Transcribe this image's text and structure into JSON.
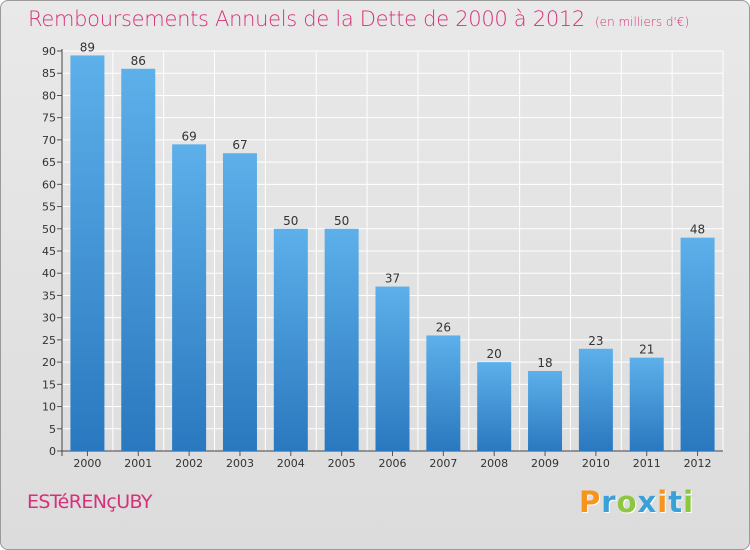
{
  "title": "Remboursements Annuels de la Dette de 2000 à 2012",
  "unit_note": "(en milliers d'€)",
  "commune": "ESTéRENçUBY",
  "logo": {
    "text": "Proxiti",
    "letter_colors": [
      "#f7941d",
      "#3aa0d8",
      "#8dc63f",
      "#3aa0d8",
      "#f7941d",
      "#3aa0d8",
      "#8dc63f"
    ]
  },
  "colors": {
    "bar_top": "#5db0ea",
    "bar_bottom": "#2a78bf",
    "title": "#d6307a",
    "grid": "#ffffff",
    "text": "#333333"
  },
  "chart_data": {
    "type": "bar",
    "title": "Remboursements Annuels de la Dette de 2000 à 2012",
    "categories": [
      "2000",
      "2001",
      "2002",
      "2003",
      "2004",
      "2005",
      "2006",
      "2007",
      "2008",
      "2009",
      "2010",
      "2011",
      "2012"
    ],
    "values": [
      89,
      86,
      69,
      67,
      50,
      50,
      37,
      26,
      20,
      18,
      23,
      21,
      48
    ],
    "ylim": [
      0,
      90
    ],
    "yticks": [
      0,
      5,
      10,
      15,
      20,
      25,
      30,
      35,
      40,
      45,
      50,
      55,
      60,
      65,
      70,
      75,
      80,
      85,
      90
    ],
    "grid": true,
    "data_labels": true
  }
}
